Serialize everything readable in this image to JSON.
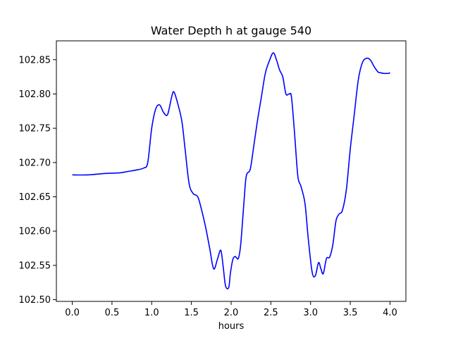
{
  "chart_data": {
    "type": "line",
    "title": "Water Depth h at gauge 540",
    "xlabel": "hours",
    "ylabel": "",
    "xlim": [
      -0.2,
      4.2
    ],
    "ylim": [
      102.4975,
      102.8775
    ],
    "xticks": [
      0.0,
      0.5,
      1.0,
      1.5,
      2.0,
      2.5,
      3.0,
      3.5,
      4.0
    ],
    "xtick_labels": [
      "0.0",
      "0.5",
      "1.0",
      "1.5",
      "2.0",
      "2.5",
      "3.0",
      "3.5",
      "4.0"
    ],
    "yticks": [
      102.5,
      102.55,
      102.6,
      102.65,
      102.7,
      102.75,
      102.8,
      102.85
    ],
    "ytick_labels": [
      "102.50",
      "102.55",
      "102.60",
      "102.65",
      "102.70",
      "102.75",
      "102.80",
      "102.85"
    ],
    "grid": false,
    "line_color": "#0000ff",
    "series": [
      {
        "x": [
          0.0,
          0.2,
          0.4,
          0.6,
          0.7,
          0.8,
          0.9,
          0.95,
          1.0,
          1.05,
          1.1,
          1.15,
          1.2,
          1.25,
          1.28,
          1.33,
          1.38,
          1.42,
          1.47,
          1.52,
          1.58,
          1.63,
          1.68,
          1.73,
          1.78,
          1.83,
          1.87,
          1.9,
          1.93,
          1.97,
          1.99,
          2.02,
          2.05,
          2.09,
          2.12,
          2.16,
          2.19,
          2.24,
          2.28,
          2.33,
          2.38,
          2.43,
          2.48,
          2.53,
          2.57,
          2.61,
          2.65,
          2.69,
          2.73,
          2.76,
          2.8,
          2.84,
          2.88,
          2.93,
          2.97,
          3.02,
          3.06,
          3.1,
          3.13,
          3.16,
          3.2,
          3.24,
          3.28,
          3.32,
          3.36,
          3.4,
          3.45,
          3.5,
          3.55,
          3.6,
          3.65,
          3.7,
          3.75,
          3.8,
          3.85,
          3.88,
          3.92,
          3.95,
          3.98,
          4.0
        ],
        "y": [
          102.682,
          102.682,
          102.684,
          102.685,
          102.687,
          102.689,
          102.692,
          102.7,
          102.75,
          102.778,
          102.784,
          102.773,
          102.77,
          102.795,
          102.803,
          102.785,
          102.76,
          102.72,
          102.67,
          102.655,
          102.65,
          102.63,
          102.605,
          102.575,
          102.545,
          102.56,
          102.572,
          102.548,
          102.52,
          102.518,
          102.538,
          102.558,
          102.563,
          102.56,
          102.58,
          102.64,
          102.68,
          102.69,
          102.72,
          102.76,
          102.795,
          102.83,
          102.848,
          102.86,
          102.85,
          102.835,
          102.825,
          102.8,
          102.8,
          102.795,
          102.74,
          102.68,
          102.665,
          102.64,
          102.59,
          102.54,
          102.535,
          102.554,
          102.545,
          102.538,
          102.56,
          102.562,
          102.58,
          102.615,
          102.625,
          102.63,
          102.66,
          102.72,
          102.77,
          102.82,
          102.845,
          102.852,
          102.85,
          102.84,
          102.832,
          102.831,
          102.83,
          102.83,
          102.83,
          102.831
        ]
      }
    ]
  }
}
